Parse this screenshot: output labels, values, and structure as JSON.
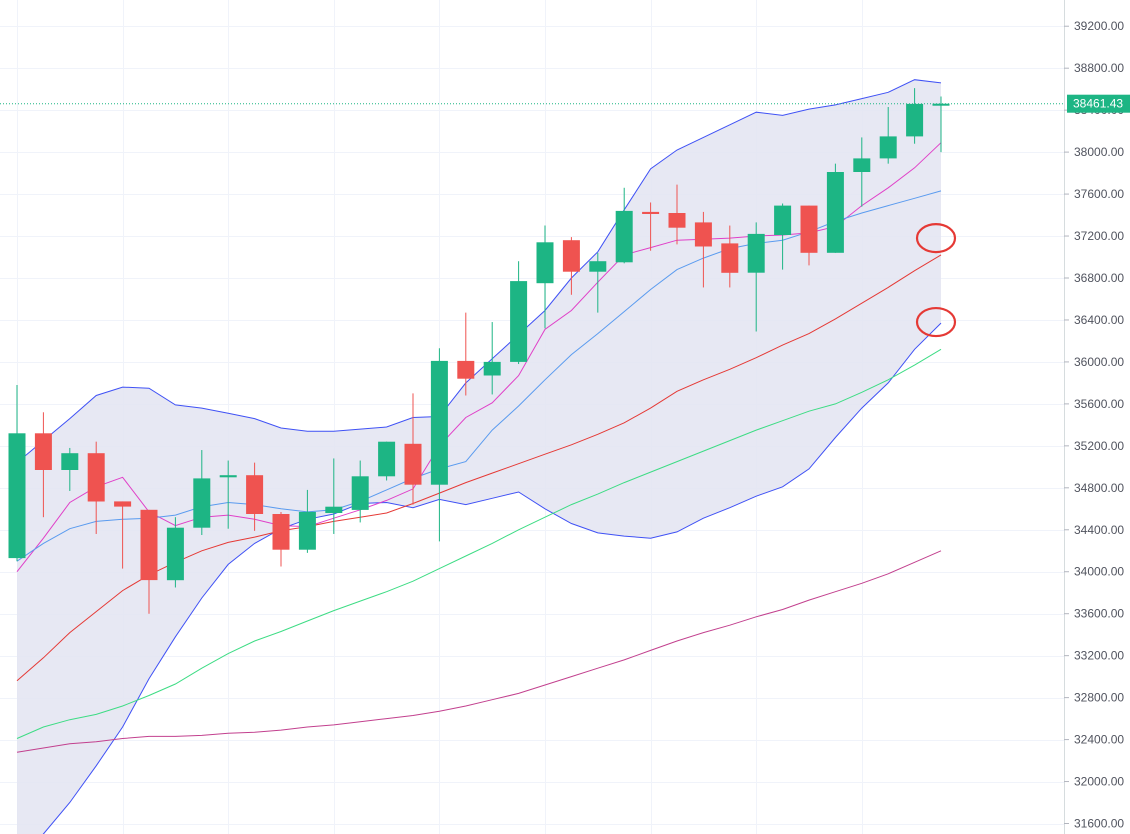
{
  "chart_data": {
    "type": "candlestick",
    "title": "",
    "xlabel": "",
    "ylabel": "",
    "ylim": [
      31500,
      39450
    ],
    "y_ticks": [
      "31600.00",
      "32000.00",
      "32400.00",
      "32800.00",
      "33200.00",
      "33600.00",
      "34000.00",
      "34400.00",
      "34800.00",
      "35200.00",
      "35600.00",
      "36000.00",
      "36400.00",
      "36800.00",
      "37200.00",
      "37600.00",
      "38000.00",
      "38400.00",
      "38800.00",
      "39200.00"
    ],
    "y_tick_values": [
      31600,
      32000,
      32400,
      32800,
      33200,
      33600,
      34000,
      34400,
      34800,
      35200,
      35600,
      36000,
      36400,
      36800,
      37200,
      37600,
      38000,
      38400,
      38800,
      39200
    ],
    "last_price": 38461.43,
    "last_price_label": "38461.43",
    "grid": true,
    "colors": {
      "up": "#26a69a",
      "up_fill": "#1db584",
      "down": "#ef5350",
      "band_fill": "#e3e4f1",
      "band_line": "#3f51f5",
      "ma_short": "#e040c8",
      "ma_mid": "#5a9bef",
      "ma_long": "#e53935",
      "ma_longer": "#3ddc84",
      "ma_longest": "#c2408e",
      "annotation": "#e53935"
    },
    "candles": [
      {
        "o": 34130,
        "h": 35780,
        "l": 34100,
        "c": 35320
      },
      {
        "o": 35320,
        "h": 35520,
        "l": 34520,
        "c": 34970
      },
      {
        "o": 34970,
        "h": 35180,
        "l": 34770,
        "c": 35130
      },
      {
        "o": 35130,
        "h": 35240,
        "l": 34360,
        "c": 34670
      },
      {
        "o": 34670,
        "h": 34670,
        "l": 34030,
        "c": 34620
      },
      {
        "o": 34590,
        "h": 34590,
        "l": 33600,
        "c": 33920
      },
      {
        "o": 33920,
        "h": 34520,
        "l": 33850,
        "c": 34420
      },
      {
        "o": 34420,
        "h": 35160,
        "l": 34350,
        "c": 34890
      },
      {
        "o": 34900,
        "h": 35060,
        "l": 34410,
        "c": 34920
      },
      {
        "o": 34920,
        "h": 35040,
        "l": 34390,
        "c": 34550
      },
      {
        "o": 34550,
        "h": 34570,
        "l": 34050,
        "c": 34210
      },
      {
        "o": 34210,
        "h": 34780,
        "l": 34180,
        "c": 34570
      },
      {
        "o": 34560,
        "h": 35080,
        "l": 34360,
        "c": 34620
      },
      {
        "o": 34590,
        "h": 35060,
        "l": 34470,
        "c": 34910
      },
      {
        "o": 34910,
        "h": 35240,
        "l": 34870,
        "c": 35240
      },
      {
        "o": 35220,
        "h": 35700,
        "l": 34640,
        "c": 34830
      },
      {
        "o": 34830,
        "h": 36130,
        "l": 34290,
        "c": 36010
      },
      {
        "o": 36010,
        "h": 36470,
        "l": 35680,
        "c": 35840
      },
      {
        "o": 35870,
        "h": 36380,
        "l": 35690,
        "c": 36000
      },
      {
        "o": 36000,
        "h": 36960,
        "l": 35980,
        "c": 36770
      },
      {
        "o": 36750,
        "h": 37300,
        "l": 36320,
        "c": 37140
      },
      {
        "o": 37160,
        "h": 37190,
        "l": 36640,
        "c": 36860
      },
      {
        "o": 36860,
        "h": 37040,
        "l": 36470,
        "c": 36960
      },
      {
        "o": 36950,
        "h": 37660,
        "l": 36940,
        "c": 37440
      },
      {
        "o": 37430,
        "h": 37520,
        "l": 37060,
        "c": 37410
      },
      {
        "o": 37420,
        "h": 37690,
        "l": 37120,
        "c": 37280
      },
      {
        "o": 37330,
        "h": 37430,
        "l": 36710,
        "c": 37100
      },
      {
        "o": 37130,
        "h": 37300,
        "l": 36710,
        "c": 36850
      },
      {
        "o": 36850,
        "h": 37330,
        "l": 36290,
        "c": 37220
      },
      {
        "o": 37210,
        "h": 37510,
        "l": 36880,
        "c": 37490
      },
      {
        "o": 37490,
        "h": 37490,
        "l": 36920,
        "c": 37040
      },
      {
        "o": 37040,
        "h": 37890,
        "l": 37040,
        "c": 37810
      },
      {
        "o": 37810,
        "h": 38140,
        "l": 37480,
        "c": 37940
      },
      {
        "o": 37940,
        "h": 38430,
        "l": 37890,
        "c": 38150
      },
      {
        "o": 38150,
        "h": 38610,
        "l": 38080,
        "c": 38460
      },
      {
        "o": 38450,
        "h": 38530,
        "l": 38000,
        "c": 38461.43
      }
    ],
    "series": [
      {
        "values": [
          35040,
          35250,
          35460,
          35680,
          35760,
          35750,
          35590,
          35560,
          35510,
          35460,
          35370,
          35340,
          35340,
          35360,
          35380,
          35470,
          35480,
          35800,
          36030,
          36260,
          36490,
          36800,
          37050,
          37450,
          37840,
          38020,
          38140,
          38260,
          38380,
          38350,
          38410,
          38450,
          38510,
          38570,
          38690,
          38660
        ]
      },
      {
        "values": [
          31200,
          31500,
          31800,
          32150,
          32520,
          32980,
          33380,
          33750,
          34070,
          34270,
          34410,
          34500,
          34550,
          34650,
          34660,
          34610,
          34690,
          34640,
          34700,
          34760,
          34600,
          34460,
          34370,
          34340,
          34320,
          34380,
          34510,
          34610,
          34720,
          34810,
          34980,
          35280,
          35560,
          35800,
          36120,
          36370
        ]
      },
      {
        "values": [
          34000,
          34320,
          34660,
          34810,
          34900,
          34570,
          34440,
          34520,
          34540,
          34500,
          34440,
          34430,
          34510,
          34590,
          34680,
          34790,
          35200,
          35470,
          35610,
          35870,
          36310,
          36490,
          36760,
          37020,
          37090,
          37160,
          37170,
          37180,
          37200,
          37210,
          37230,
          37290,
          37490,
          37660,
          37850,
          38090
        ]
      }
    ],
    "averages": [
      {
        "values": [
          34100,
          34270,
          34410,
          34480,
          34500,
          34510,
          34540,
          34620,
          34660,
          34640,
          34600,
          34570,
          34590,
          34670,
          34780,
          34890,
          34980,
          35050,
          35350,
          35580,
          35830,
          36070,
          36270,
          36480,
          36690,
          36880,
          36990,
          37080,
          37130,
          37160,
          37240,
          37340,
          37420,
          37490,
          37560,
          37630
        ]
      },
      {
        "values": [
          32960,
          33180,
          33420,
          33620,
          33820,
          33970,
          34090,
          34200,
          34280,
          34330,
          34390,
          34430,
          34480,
          34520,
          34560,
          34650,
          34750,
          34850,
          34940,
          35030,
          35120,
          35210,
          35310,
          35420,
          35560,
          35720,
          35830,
          35930,
          36040,
          36160,
          36270,
          36410,
          36560,
          36710,
          36870,
          37020
        ]
      },
      {
        "values": [
          32410,
          32520,
          32590,
          32640,
          32720,
          32820,
          32930,
          33080,
          33220,
          33340,
          33430,
          33530,
          33630,
          33720,
          33810,
          33910,
          34030,
          34150,
          34270,
          34400,
          34520,
          34640,
          34740,
          34850,
          34950,
          35050,
          35150,
          35250,
          35350,
          35440,
          35530,
          35600,
          35710,
          35830,
          35970,
          36120
        ]
      },
      {
        "values": [
          32280,
          32320,
          32360,
          32380,
          32410,
          32430,
          32430,
          32440,
          32460,
          32470,
          32490,
          32520,
          32540,
          32570,
          32600,
          32630,
          32670,
          32720,
          32780,
          32840,
          32920,
          33000,
          33080,
          33160,
          33250,
          33340,
          33420,
          33490,
          33570,
          33640,
          33730,
          33810,
          33890,
          33980,
          34090,
          34200
        ]
      }
    ],
    "annotations": [
      {
        "type": "circle",
        "y": 37180,
        "candle": 35
      },
      {
        "type": "circle",
        "y": 36380,
        "candle": 35
      }
    ]
  }
}
